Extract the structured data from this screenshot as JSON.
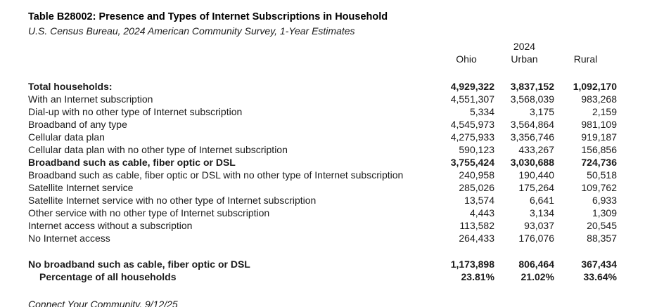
{
  "chart_data": {
    "type": "table",
    "title": "Table B28002: Presence and Types of Internet Subscriptions in Household",
    "subtitle": "U.S. Census Bureau, 2024 American Community Survey, 1-Year Estimates",
    "year_header": "2024",
    "columns": [
      "Ohio",
      "Urban",
      "Rural"
    ],
    "rows": [
      {
        "label": "Total households:",
        "values": [
          "4,929,322",
          "3,837,152",
          "1,092,170"
        ],
        "bold": true
      },
      {
        "label": "With an Internet subscription",
        "values": [
          "4,551,307",
          "3,568,039",
          "983,268"
        ],
        "bold": false
      },
      {
        "label": "Dial-up with no other type of Internet subscription",
        "values": [
          "5,334",
          "3,175",
          "2,159"
        ],
        "bold": false
      },
      {
        "label": "Broadband of any type",
        "values": [
          "4,545,973",
          "3,564,864",
          "981,109"
        ],
        "bold": false
      },
      {
        "label": "Cellular data plan",
        "values": [
          "4,275,933",
          "3,356,746",
          "919,187"
        ],
        "bold": false
      },
      {
        "label": "Cellular data plan with no other type of Internet subscription",
        "values": [
          "590,123",
          "433,267",
          "156,856"
        ],
        "bold": false
      },
      {
        "label": "Broadband such as cable, fiber optic or DSL",
        "values": [
          "3,755,424",
          "3,030,688",
          "724,736"
        ],
        "bold": true
      },
      {
        "label": "Broadband such as cable, fiber optic or DSL with no other type of Internet subscription",
        "values": [
          "240,958",
          "190,440",
          "50,518"
        ],
        "bold": false
      },
      {
        "label": "Satellite Internet service",
        "values": [
          "285,026",
          "175,264",
          "109,762"
        ],
        "bold": false
      },
      {
        "label": "Satellite Internet service with no other type of Internet subscription",
        "values": [
          "13,574",
          "6,641",
          "6,933"
        ],
        "bold": false
      },
      {
        "label": "Other service with no other type of Internet subscription",
        "values": [
          "4,443",
          "3,134",
          "1,309"
        ],
        "bold": false
      },
      {
        "label": "Internet access without a subscription",
        "values": [
          "113,582",
          "93,037",
          "20,545"
        ],
        "bold": false
      },
      {
        "label": "No Internet access",
        "values": [
          "264,433",
          "176,076",
          "88,357"
        ],
        "bold": false
      }
    ],
    "summary_rows": [
      {
        "label": "No broadband such as cable, fiber optic or DSL",
        "values": [
          "1,173,898",
          "806,464",
          "367,434"
        ],
        "bold": true,
        "indent": false
      },
      {
        "label": "Percentage of all households",
        "values": [
          "23.81%",
          "21.02%",
          "33.64%"
        ],
        "bold": true,
        "indent": true
      }
    ],
    "footnote": "Connect Your Community, 9/12/25"
  },
  "colors": {
    "text": "#1a1a1a",
    "background": "#ffffff"
  }
}
